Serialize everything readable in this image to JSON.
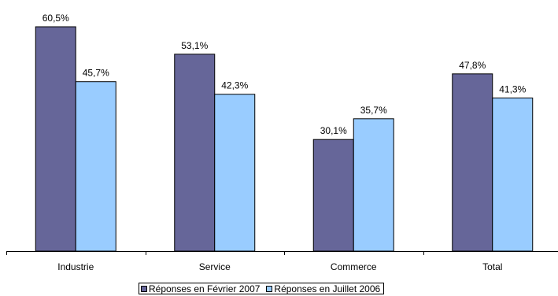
{
  "chart_data": {
    "type": "bar",
    "categories": [
      "Industrie",
      "Service",
      "Commerce",
      "Total"
    ],
    "series": [
      {
        "name": "Réponses en Février 2007",
        "values": [
          60.5,
          53.1,
          30.1,
          47.8
        ],
        "labels": [
          "60,5%",
          "53,1%",
          "30,1%",
          "47,8%"
        ],
        "color": "#666699"
      },
      {
        "name": "Réponses en Juillet 2006",
        "values": [
          45.7,
          42.3,
          35.7,
          41.3
        ],
        "labels": [
          "45,7%",
          "42,3%",
          "35,7%",
          "41,3%"
        ],
        "color": "#99CCFF"
      }
    ],
    "ylim": [
      0,
      60.5
    ],
    "title": "",
    "xlabel": "",
    "ylabel": "",
    "grid": false,
    "legend": "bottom"
  }
}
